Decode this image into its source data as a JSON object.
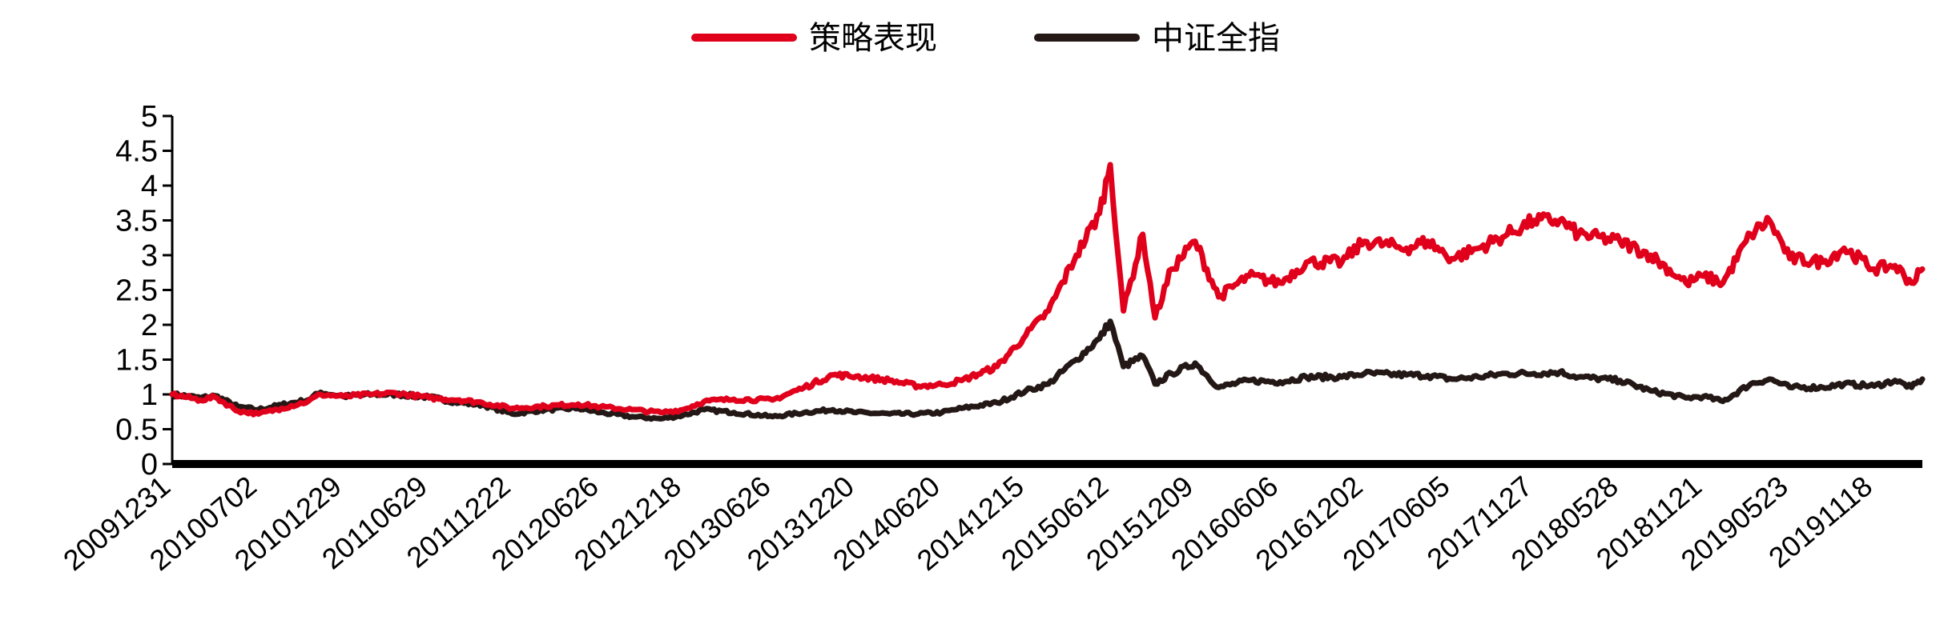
{
  "chart_data": {
    "type": "line",
    "title": "",
    "xlabel": "",
    "ylabel": "",
    "ylim": [
      0,
      5
    ],
    "yticks": [
      0,
      0.5,
      1,
      1.5,
      2,
      2.5,
      3,
      3.5,
      4,
      4.5,
      5
    ],
    "ytick_labels": [
      "0",
      "0.5",
      "1",
      "1.5",
      "2",
      "2.5",
      "3",
      "3.5",
      "4",
      "4.5",
      "5"
    ],
    "xticks": [
      "20091231",
      "20100702",
      "20101229",
      "20110629",
      "20111222",
      "20120626",
      "20121218",
      "20130626",
      "20131220",
      "20140620",
      "20141215",
      "20150612",
      "20151209",
      "20160606",
      "20161202",
      "20170605",
      "20171127",
      "20180528",
      "20181121",
      "20190523",
      "20191118"
    ],
    "x_end": "20200228",
    "grid": false,
    "legend_position": "top-center",
    "series": [
      {
        "name": "策略表现",
        "color": "#e0001b",
        "points": [
          [
            "20091231",
            1.0
          ],
          [
            "20100301",
            0.92
          ],
          [
            "20100401",
            0.96
          ],
          [
            "20100520",
            0.76
          ],
          [
            "20100702",
            0.72
          ],
          [
            "20100820",
            0.8
          ],
          [
            "20101015",
            0.9
          ],
          [
            "20101111",
            1.0
          ],
          [
            "20101229",
            0.97
          ],
          [
            "20110301",
            1.0
          ],
          [
            "20110420",
            1.02
          ],
          [
            "20110629",
            0.95
          ],
          [
            "20110901",
            0.92
          ],
          [
            "20111020",
            0.88
          ],
          [
            "20111222",
            0.8
          ],
          [
            "20120301",
            0.83
          ],
          [
            "20120510",
            0.86
          ],
          [
            "20120626",
            0.82
          ],
          [
            "20120901",
            0.78
          ],
          [
            "20121101",
            0.74
          ],
          [
            "20121218",
            0.78
          ],
          [
            "20130201",
            0.9
          ],
          [
            "20130405",
            0.93
          ],
          [
            "20130626",
            0.92
          ],
          [
            "20130901",
            1.1
          ],
          [
            "20131101",
            1.28
          ],
          [
            "20131220",
            1.26
          ],
          [
            "20140301",
            1.2
          ],
          [
            "20140501",
            1.12
          ],
          [
            "20140620",
            1.14
          ],
          [
            "20140801",
            1.2
          ],
          [
            "20141015",
            1.4
          ],
          [
            "20141215",
            1.85
          ],
          [
            "20150201",
            2.2
          ],
          [
            "20150401",
            3.0
          ],
          [
            "20150520",
            3.6
          ],
          [
            "20150612",
            4.3
          ],
          [
            "20150710",
            2.2
          ],
          [
            "20150820",
            3.3
          ],
          [
            "20150915",
            2.1
          ],
          [
            "20151020",
            2.8
          ],
          [
            "20151209",
            3.2
          ],
          [
            "20160128",
            2.4
          ],
          [
            "20160401",
            2.7
          ],
          [
            "20160606",
            2.6
          ],
          [
            "20160801",
            2.9
          ],
          [
            "20161015",
            2.9
          ],
          [
            "20161202",
            3.2
          ],
          [
            "20170301",
            3.1
          ],
          [
            "20170415",
            3.2
          ],
          [
            "20170605",
            2.95
          ],
          [
            "20170801",
            3.1
          ],
          [
            "20171001",
            3.3
          ],
          [
            "20171127",
            3.5
          ],
          [
            "20180120",
            3.5
          ],
          [
            "20180301",
            3.3
          ],
          [
            "20180528",
            3.2
          ],
          [
            "20180801",
            3.0
          ],
          [
            "20181015",
            2.6
          ],
          [
            "20181121",
            2.7
          ],
          [
            "20190101",
            2.6
          ],
          [
            "20190301",
            3.3
          ],
          [
            "20190410",
            3.5
          ],
          [
            "20190523",
            2.95
          ],
          [
            "20190801",
            2.9
          ],
          [
            "20190915",
            3.1
          ],
          [
            "20191118",
            2.8
          ],
          [
            "20200101",
            2.85
          ],
          [
            "20200205",
            2.6
          ],
          [
            "20200228",
            2.8
          ]
        ]
      },
      {
        "name": "中证全指",
        "color": "#231815",
        "points": [
          [
            "20091231",
            1.0
          ],
          [
            "20100301",
            0.95
          ],
          [
            "20100401",
            0.98
          ],
          [
            "20100520",
            0.82
          ],
          [
            "20100702",
            0.78
          ],
          [
            "20100820",
            0.85
          ],
          [
            "20101015",
            0.92
          ],
          [
            "20101111",
            1.03
          ],
          [
            "20101229",
            0.97
          ],
          [
            "20110301",
            1.0
          ],
          [
            "20110420",
            1.0
          ],
          [
            "20110629",
            0.96
          ],
          [
            "20110901",
            0.88
          ],
          [
            "20111020",
            0.85
          ],
          [
            "20111222",
            0.72
          ],
          [
            "20120301",
            0.78
          ],
          [
            "20120510",
            0.8
          ],
          [
            "20120626",
            0.74
          ],
          [
            "20120901",
            0.68
          ],
          [
            "20121101",
            0.65
          ],
          [
            "20121218",
            0.7
          ],
          [
            "20130201",
            0.78
          ],
          [
            "20130405",
            0.74
          ],
          [
            "20130626",
            0.68
          ],
          [
            "20130901",
            0.74
          ],
          [
            "20131101",
            0.78
          ],
          [
            "20131220",
            0.74
          ],
          [
            "20140301",
            0.72
          ],
          [
            "20140501",
            0.72
          ],
          [
            "20140620",
            0.74
          ],
          [
            "20140801",
            0.8
          ],
          [
            "20141015",
            0.88
          ],
          [
            "20141215",
            1.05
          ],
          [
            "20150201",
            1.15
          ],
          [
            "20150401",
            1.5
          ],
          [
            "20150520",
            1.8
          ],
          [
            "20150612",
            2.05
          ],
          [
            "20150710",
            1.4
          ],
          [
            "20150820",
            1.55
          ],
          [
            "20150915",
            1.15
          ],
          [
            "20151020",
            1.3
          ],
          [
            "20151209",
            1.45
          ],
          [
            "20160128",
            1.1
          ],
          [
            "20160401",
            1.2
          ],
          [
            "20160606",
            1.18
          ],
          [
            "20160801",
            1.25
          ],
          [
            "20161015",
            1.25
          ],
          [
            "20161202",
            1.3
          ],
          [
            "20170301",
            1.28
          ],
          [
            "20170415",
            1.27
          ],
          [
            "20170605",
            1.22
          ],
          [
            "20170801",
            1.25
          ],
          [
            "20171001",
            1.3
          ],
          [
            "20171127",
            1.3
          ],
          [
            "20180120",
            1.32
          ],
          [
            "20180301",
            1.25
          ],
          [
            "20180528",
            1.2
          ],
          [
            "20180801",
            1.05
          ],
          [
            "20181015",
            0.95
          ],
          [
            "20181121",
            0.97
          ],
          [
            "20190101",
            0.9
          ],
          [
            "20190301",
            1.15
          ],
          [
            "20190410",
            1.22
          ],
          [
            "20190523",
            1.1
          ],
          [
            "20190801",
            1.1
          ],
          [
            "20190915",
            1.15
          ],
          [
            "20191118",
            1.12
          ],
          [
            "20200101",
            1.2
          ],
          [
            "20200205",
            1.1
          ],
          [
            "20200228",
            1.22
          ]
        ]
      }
    ]
  }
}
